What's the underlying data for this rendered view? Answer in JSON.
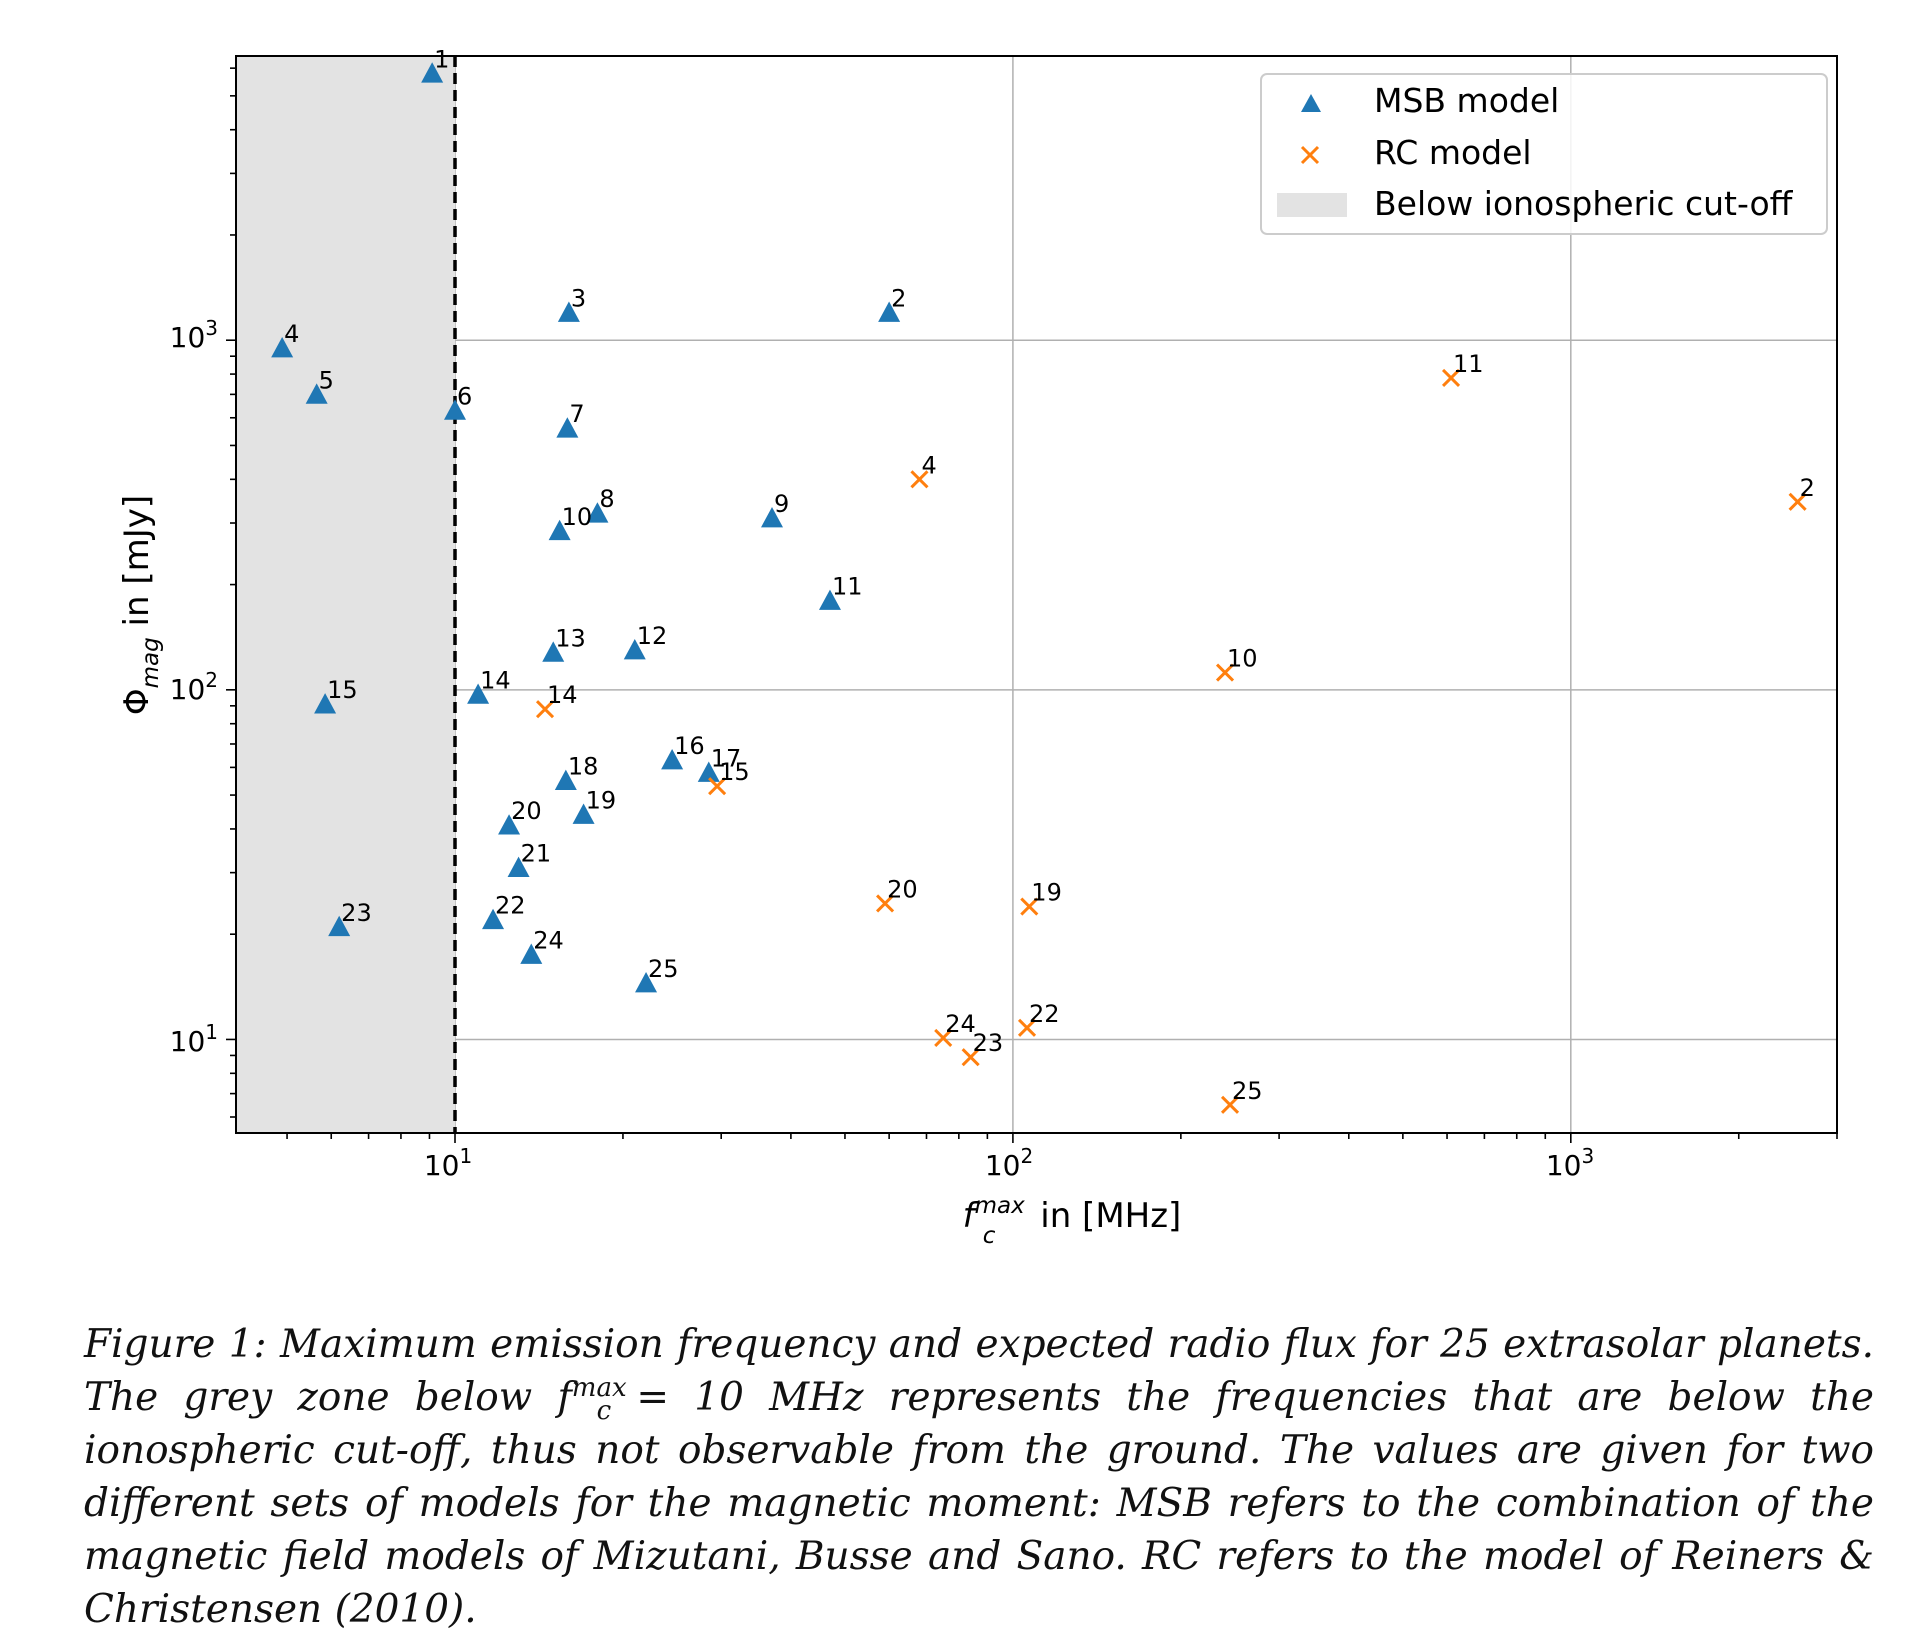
{
  "chart_data": {
    "type": "scatter",
    "xlabel": "f_c^max in [MHz]",
    "ylabel": "Φ_mag in [mJy]",
    "xscale": "log",
    "yscale": "log",
    "xlim": [
      4.05,
      3000
    ],
    "ylim": [
      5.4,
      6500
    ],
    "x_ticks": [
      "10^1",
      "10^2",
      "10^3"
    ],
    "y_ticks": [
      "10^1",
      "10^2",
      "10^3"
    ],
    "grid": true,
    "cutoff_line_x": 10,
    "shaded_region": {
      "from": 4.05,
      "to": 10,
      "label": "Below ionospheric cut-off",
      "color": "#e3e3e3"
    },
    "legend_position": "top-right",
    "series": [
      {
        "name": "MSB model",
        "marker": "triangle",
        "color": "#1f77b4",
        "points": [
          {
            "label": "1",
            "x": 9.1,
            "y": 5800
          },
          {
            "label": "2",
            "x": 60,
            "y": 1200
          },
          {
            "label": "3",
            "x": 16,
            "y": 1200
          },
          {
            "label": "4",
            "x": 4.9,
            "y": 950
          },
          {
            "label": "5",
            "x": 5.65,
            "y": 700
          },
          {
            "label": "6",
            "x": 10,
            "y": 630
          },
          {
            "label": "7",
            "x": 15.9,
            "y": 560
          },
          {
            "label": "8",
            "x": 18,
            "y": 320
          },
          {
            "label": "9",
            "x": 37,
            "y": 310
          },
          {
            "label": "10",
            "x": 15.4,
            "y": 285
          },
          {
            "label": "11",
            "x": 47,
            "y": 180
          },
          {
            "label": "12",
            "x": 21,
            "y": 130
          },
          {
            "label": "13",
            "x": 15,
            "y": 128
          },
          {
            "label": "14",
            "x": 11,
            "y": 97
          },
          {
            "label": "15",
            "x": 5.85,
            "y": 91
          },
          {
            "label": "16",
            "x": 24.5,
            "y": 63
          },
          {
            "label": "17",
            "x": 28.5,
            "y": 58
          },
          {
            "label": "18",
            "x": 15.8,
            "y": 55
          },
          {
            "label": "19",
            "x": 17,
            "y": 44
          },
          {
            "label": "20",
            "x": 12.5,
            "y": 41
          },
          {
            "label": "21",
            "x": 13,
            "y": 31
          },
          {
            "label": "22",
            "x": 11.7,
            "y": 22
          },
          {
            "label": "23",
            "x": 6.2,
            "y": 21
          },
          {
            "label": "24",
            "x": 13.7,
            "y": 17.5
          },
          {
            "label": "25",
            "x": 22,
            "y": 14.5
          }
        ]
      },
      {
        "name": "RC model",
        "marker": "x",
        "color": "#ff7f0e",
        "points": [
          {
            "label": "11",
            "x": 610,
            "y": 780
          },
          {
            "label": "4",
            "x": 68,
            "y": 400
          },
          {
            "label": "2",
            "x": 2550,
            "y": 345
          },
          {
            "label": "10",
            "x": 240,
            "y": 112
          },
          {
            "label": "14",
            "x": 14.5,
            "y": 88
          },
          {
            "label": "15",
            "x": 29.5,
            "y": 53
          },
          {
            "label": "20",
            "x": 59,
            "y": 24.5
          },
          {
            "label": "19",
            "x": 107,
            "y": 24
          },
          {
            "label": "22",
            "x": 106,
            "y": 10.8
          },
          {
            "label": "24",
            "x": 75,
            "y": 10.1
          },
          {
            "label": "23",
            "x": 84,
            "y": 8.9
          },
          {
            "label": "25",
            "x": 245,
            "y": 6.5
          }
        ]
      }
    ]
  },
  "legend": {
    "msb": "MSB model",
    "rc": "RC model",
    "cutoff": "Below ionospheric cut-off"
  },
  "axes": {
    "xlabel_f": "f",
    "xlabel_sup": "max",
    "xlabel_sub": "c",
    "xlabel_rest": " in [MHz]",
    "ylabel_phi": "Φ",
    "ylabel_sub": "mag",
    "ylabel_rest": " in [mJy]",
    "tick_base": "10",
    "tick_exp_1": "1",
    "tick_exp_2": "2",
    "tick_exp_3": "3"
  },
  "caption": {
    "part1": "Figure 1: Maximum emission frequency and expected radio flux for 25 extrasolar planets. The grey zone below ",
    "f": "f",
    "sub": "c",
    "sup": "max",
    "part2": " = 10 MHz represents the frequencies that are below the ionospheric cut-off, thus not observable from the ground. The values are given for two different sets of models for the magnetic moment: MSB refers to the combination of the magnetic field models of Mizutani, Busse and Sano. RC refers to the model of Reiners & Christensen (2010)."
  }
}
